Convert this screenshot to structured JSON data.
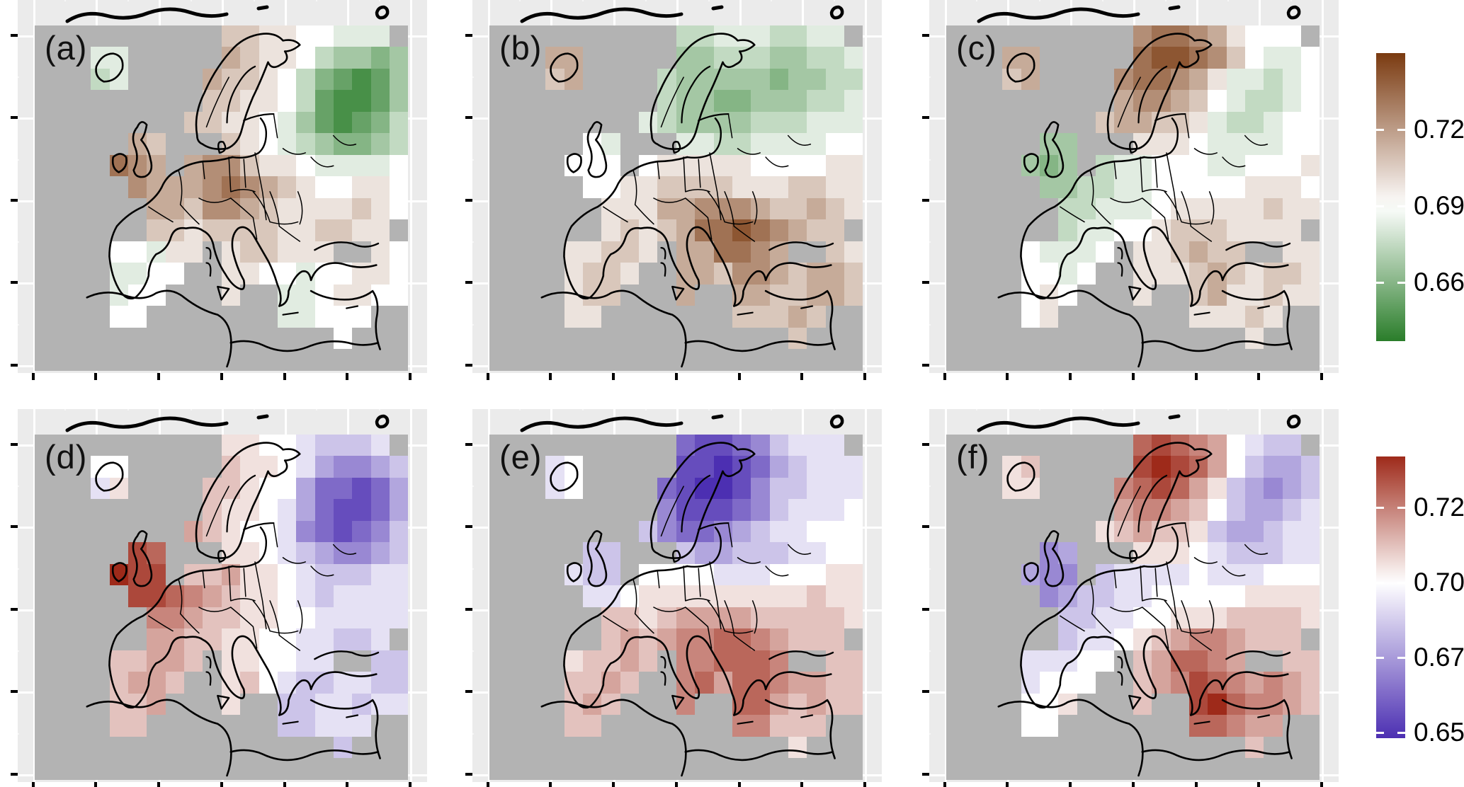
{
  "figure": {
    "description": "Six-panel faceted raster maps of Europe with two diverging colorbars",
    "layout": {
      "rows": 2,
      "cols": 3
    },
    "background_color": "#ffffff",
    "panel_background": "#ebebeb",
    "no_data_color": "#b3b3b3",
    "gridline_color": "#ffffff",
    "coastline_color": "#000000"
  },
  "chart_data": {
    "type": "heatmap",
    "geography": "Europe raster maps, approx 25W-45E / 31N-73N, gray = no data (sea, off-domain land)",
    "grid_encoding": {
      "columns": 20,
      "rows": 16,
      "codes": "0123456789ABCDE",
      "no_data": ".",
      "note": "code index k (0-14) maps linearly to value = value_min + (k/14)*(value_max - value_min); mid code 7 = white midpoint"
    },
    "panel_rows": [
      {
        "palette": {
          "low": "#2a7d2a",
          "mid": "#ffffff",
          "high": "#7a3a10",
          "low_name": "green",
          "high_name": "brown"
        },
        "colorbar": {
          "limits": [
            0.637,
            0.75
          ],
          "midpoint": 0.69,
          "ticks": [
            {
              "label": "0.72",
              "value": 0.72
            },
            {
              "label": "0.69",
              "value": 0.69
            },
            {
              "label": "0.66",
              "value": 0.66
            }
          ]
        },
        "panels": [
          {
            "label": "(a)",
            "value_min": 0.641,
            "value_mid": 0.69,
            "value_max": 0.739,
            "summary": "brown (high) over W/C Europe incl. UK, France, Germany; strong green (low) blob over NW Russia; pale Iberia and Balkans",
            "grid": [
              "..........998877666.",
              "...66.....A988754434",
              "...56....A9987532124",
              ".........99887521124",
              "........998876421235",
              ".....A9...9876543345",
              "....CBA.ABB988766667",
              ".....BAAABCBA9877887",
              "......AA9BBA98888987",
              "......9989999889988.",
              "....77688.899888..87",
              "....6677..8877677887",
              "....677...8..6678877",
              "....77.......66777..",
              "................7...",
              "...................."
            ]
          },
          {
            "label": "(b)",
            "value_min": 0.641,
            "value_mid": 0.69,
            "value_max": 0.739,
            "summary": "brown Iceland; green Scandinavia/Finland and NE; dark brown Balkans/SE Europe; pale brown Iberia and center",
            "grid": [
              "..........556665566.",
              "...AA.....4455544556",
              "...9A....54444434455",
              ".........54433444556",
              "........654444555666",
              ".....76...6655666677",
              "....777.788888777788",
              ".....778899998889988",
              "......888AABBBA99A98",
              "......8989ACCDCBA99.",
              "....88998.AACCBA..98",
              "....8998..AA9BBA9AA9",
              "....899...A..AA99AA9",
              "....88.......999A9..",
              "................9...",
              "...................."
            ]
          },
          {
            "label": "(c)",
            "value_min": 0.641,
            "value_mid": 0.69,
            "value_max": 0.739,
            "summary": "dark brown northern Scandinavia and brown Iceland; green UK, Ireland and France; pale green NE Russia; pale brown Balkans/Turkey",
            "grid": [
              "..........BCCBA8777.",
              "...AA.....CDDCB97667",
              "...9A....BCCBA866567",
              ".........ABBA9765567",
              "........9AA998655677",
              ".....44...8887666677",
              "....434.566777667778",
              ".....445566777778887",
              "......55666788888988",
              "......5667789998888.",
              "....76667.889A99..88",
              "....7767..8889A98998",
              "....787...8..9A88988",
              "....78.......88898..",
              "................8...",
              "...................."
            ]
          }
        ]
      },
      {
        "palette": {
          "low": "#4c2fb2",
          "mid": "#ffffff",
          "high": "#9e2a1a",
          "low_name": "purple",
          "high_name": "red"
        },
        "colorbar": {
          "limits": [
            0.648,
            0.742
          ],
          "midpoint": 0.7,
          "ticks": [
            {
              "label": "0.725",
              "value": 0.725
            },
            {
              "label": "0.700",
              "value": 0.7
            },
            {
              "label": "0.675",
              "value": 0.675
            },
            {
              "label": "0.650",
              "value": 0.65
            }
          ]
        },
        "panels": [
          {
            "label": "(d)",
            "value_min": 0.655,
            "value_mid": 0.7,
            "value_max": 0.745,
            "summary": "dark red British Isles and W France; deep purple blob over NW Russia; pale red Iberia/Norway; pale purple Balkans, Turkey",
            "grid": [
              "..........887765556.",
              "...77.....9887643345",
              "...68....99877422124",
              ".........98876421124",
              "........A98776321235",
              ".....DC...8876543345",
              "....EDD.99A887655566",
              ".....DDCBA9887656666",
              "......BBA99887766666",
              "......AA99887766556.",
              "....99AA9.887766..55",
              "....9AA9..8976556655",
              "....99A...8..5566566",
              "....99.......55666..",
              "................5...",
              "...................."
            ]
          },
          {
            "label": "(e)",
            "value_min": 0.655,
            "value_mid": 0.7,
            "value_max": 0.745,
            "summary": "deep purple Scandinavia/Finland; pale purple UK and NE; red southern/central Europe with dark red Balkans and Italy",
            "grid": [
              "..........211235666.",
              "...67.....1101245666",
              "...67....21001355666",
              ".........31112356667",
              "........532234566777",
              ".....55...5445556677",
              "....655.777766677788",
              ".....667888888888988",
              "......9989AAAA999998",
              "......9A9ABBCCBA999.",
              "....899A9.BBCCCB..99",
              "....99A9..BCACCBAA99",
              "....9A9...B..CCA9A99",
              "....99.......BB999..",
              "................8...",
              "...................."
            ]
          },
          {
            "label": "(f)",
            "value_min": 0.655,
            "value_mid": 0.7,
            "value_max": 0.745,
            "summary": "dark red northern Scandinavia and Greece/Turkey; purple UK and NE Russia blob; pale purple France/Germany; pale Iberia",
            "grid": [
              "..........CDCBA7655.",
              "...89.....DEDCA75445",
              "...88....BCDCA854345",
              ".........ABBA9754456",
              "........89A998544566",
              ".....34...8887655566",
              "....433.566667666777",
              ".....345566777778888",
              "......55667788899998",
              "......566789ABBA999.",
              "....66677.9ACCBA..99",
              "....6777..9ABDCBABA9",
              "....778...9..DECBBA9",
              "....77.......CCBAA..",
              "................9...",
              "...................."
            ]
          }
        ]
      }
    ]
  }
}
